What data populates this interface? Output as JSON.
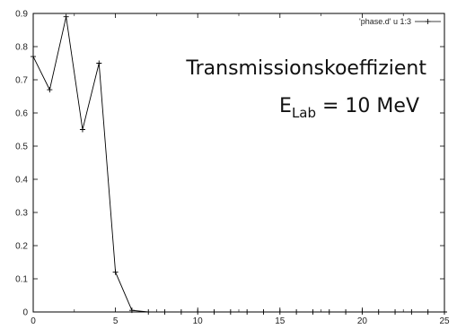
{
  "chart_data": {
    "type": "line",
    "title": "",
    "xlabel": "",
    "ylabel": "",
    "xlim": [
      0,
      25
    ],
    "ylim": [
      0,
      0.9
    ],
    "grid": false,
    "legend_position": "top-right",
    "x_ticks": [
      "0",
      "5",
      "10",
      "15",
      "20",
      "25"
    ],
    "y_ticks": [
      "0",
      "0.1",
      "0.2",
      "0.3",
      "0.4",
      "0.5",
      "0.6",
      "0.7",
      "0.8",
      "0.9"
    ],
    "series": [
      {
        "name": "'phase.d' u 1:3",
        "color": "#000000",
        "marker": "plus",
        "x": [
          0,
          1,
          2,
          3,
          4,
          5,
          6,
          7,
          8,
          9,
          10,
          11,
          12,
          13,
          14,
          15,
          16,
          17,
          18,
          19,
          20,
          21,
          22,
          23,
          24,
          25
        ],
        "y": [
          0.77,
          0.67,
          0.89,
          0.55,
          0.75,
          0.12,
          0.005,
          0,
          0,
          0,
          0,
          0,
          0,
          0,
          0,
          0,
          0,
          0,
          0,
          0,
          0,
          0,
          0,
          0,
          0,
          0
        ]
      }
    ],
    "annotation": {
      "line1": "Transmissionskoeffizient",
      "line2_main": "E",
      "line2_sub": "Lab",
      "line2_rest": " = 10 MeV"
    }
  }
}
